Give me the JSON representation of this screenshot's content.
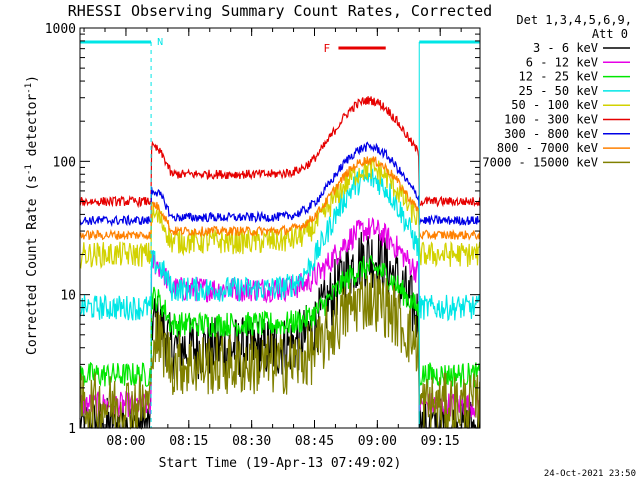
{
  "chart_data": {
    "type": "line",
    "title": "RHESSI Observing Summary Count Rates, Corrected",
    "xlabel": "Start Time (19-Apr-13 07:49:02)",
    "ylabel_main": "Corrected Count Rate (s",
    "ylabel_sup1": "-1",
    "ylabel_mid": " detector",
    "ylabel_sup2": "-1",
    "ylabel_end": ")",
    "yscale": "log",
    "ylim": [
      1,
      1000
    ],
    "xlim": [
      "07:49:02",
      "09:24:30"
    ],
    "x_ticks": [
      "08:00",
      "08:15",
      "08:30",
      "08:45",
      "09:00",
      "09:15"
    ],
    "y_ticks": [
      "1",
      "10",
      "100",
      "1000"
    ],
    "legend_title_1": "Det 1,3,4,5,6,9,",
    "legend_title_2": "Att 0",
    "legend_position": "right",
    "night_marks": [
      {
        "label": "N",
        "start": "07:49:02",
        "end": "08:06:00"
      },
      {
        "label": "",
        "start": "09:10:00",
        "end": "09:24:30"
      }
    ],
    "flare_mark": {
      "label": "F",
      "start": "08:50:00",
      "end": "09:02:00"
    },
    "series": [
      {
        "name": "3 - 6 keV",
        "color": "#000000",
        "outside": 1,
        "plateau": 4,
        "peak2": 17
      },
      {
        "name": "6 - 12 keV",
        "color": "#e600e6",
        "outside": 1.5,
        "plateau": 11,
        "peak2": 22
      },
      {
        "name": "12 - 25 keV",
        "color": "#00e600",
        "outside": 2.5,
        "plateau": 6,
        "peak2": 11
      },
      {
        "name": "25 - 50 keV",
        "color": "#00e6e6",
        "outside": 8,
        "plateau": 11,
        "peak2": 70
      },
      {
        "name": "50 - 100 keV",
        "color": "#d2d200",
        "outside": 20,
        "plateau": 25,
        "peak2": 70
      },
      {
        "name": "100 - 300 keV",
        "color": "#e60000",
        "outside": 50,
        "plateau": 80,
        "peak2": 230
      },
      {
        "name": "300 - 800 keV",
        "color": "#0000e6",
        "outside": 36,
        "plateau": 38,
        "peak2": 100
      },
      {
        "name": "800 - 7000 keV",
        "color": "#ff8000",
        "outside": 28,
        "plateau": 30,
        "peak2": 80
      },
      {
        "name": "7000 - 15000 keV",
        "color": "#808000",
        "outside": 1.5,
        "plateau": 3,
        "peak2": 7
      }
    ],
    "footer_timestamp": "24-Oct-2021 23:50"
  }
}
